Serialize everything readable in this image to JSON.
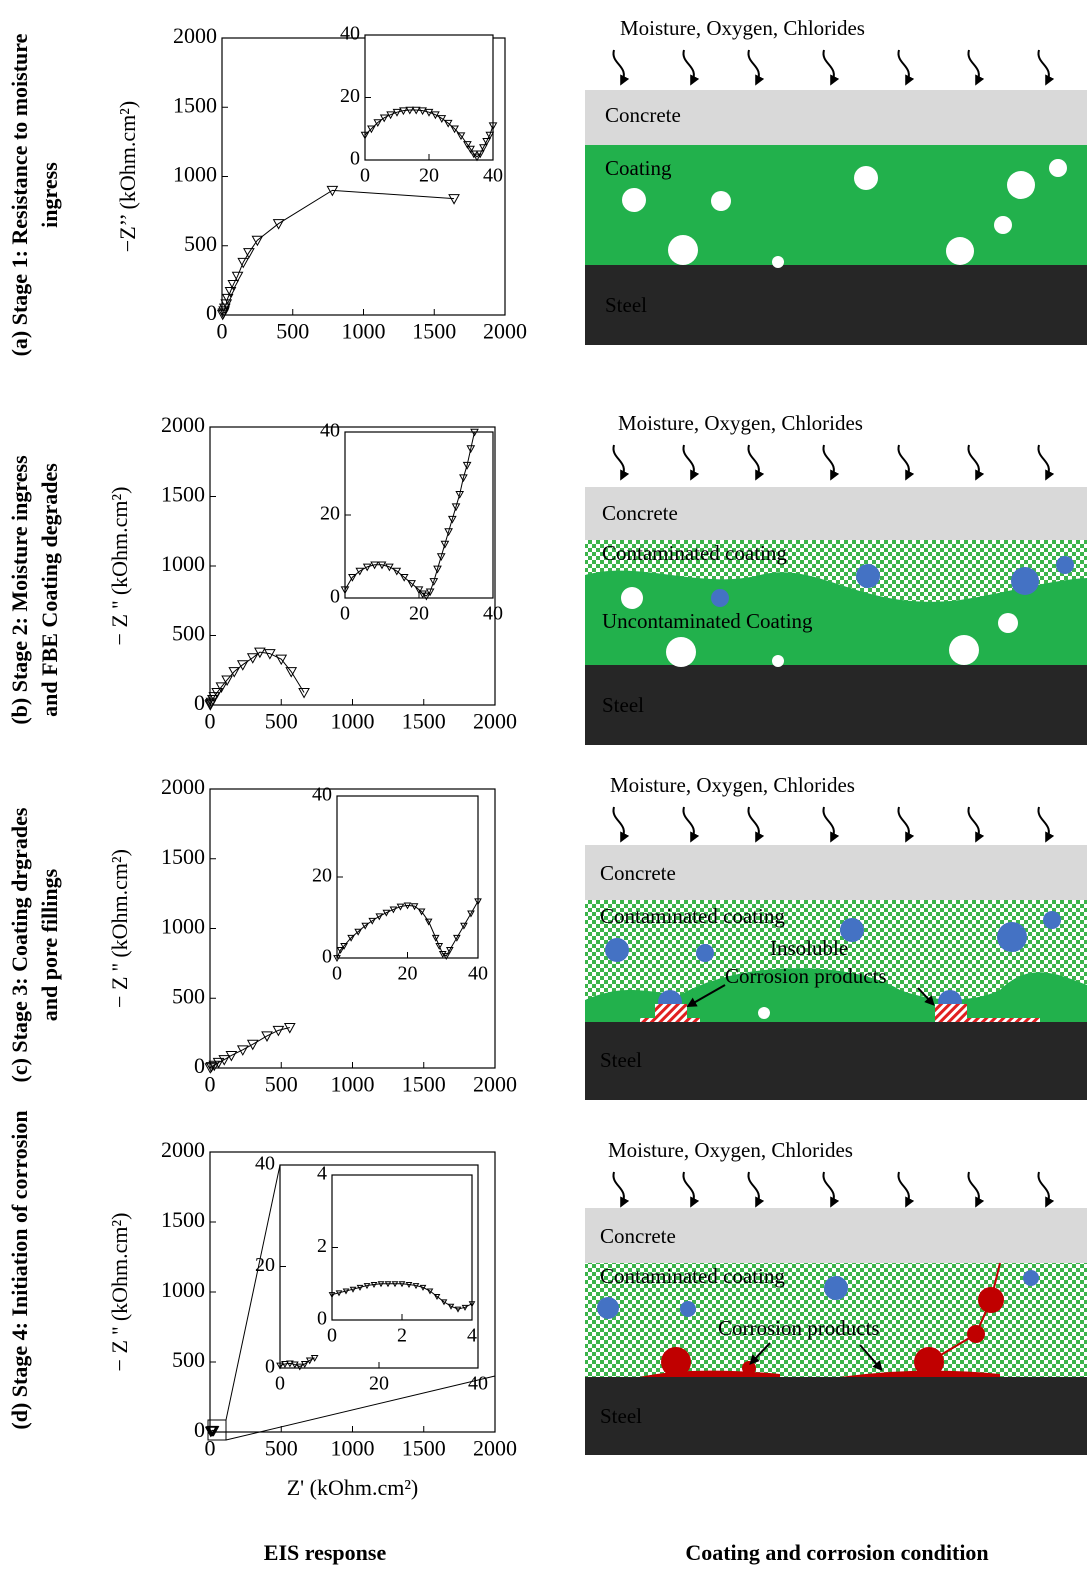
{
  "chart_data": [
    {
      "type": "scatter",
      "marker": "triangle-down",
      "fit_line": true,
      "color": "#000000",
      "y_label": "−Z’’ (kOhm.cm²)",
      "x": [
        5,
        10,
        15,
        20,
        30,
        40,
        60,
        80,
        110,
        150,
        190,
        250,
        400,
        780,
        1640
      ],
      "series": [
        {
          "values": [
            5,
            15,
            30,
            50,
            80,
            120,
            170,
            220,
            280,
            380,
            450,
            540,
            660,
            900,
            840
          ]
        }
      ],
      "xlim": [
        0,
        2000
      ],
      "ylim": [
        0,
        2000
      ],
      "xticks": [
        0,
        500,
        1000,
        1500,
        2000
      ],
      "yticks": [
        0,
        500,
        1000,
        1500,
        2000
      ]
    },
    {
      "type": "scatter",
      "marker": "triangle-down",
      "fit_line": true,
      "color": "#000000",
      "x": [
        0,
        2,
        4,
        6,
        8,
        10,
        12,
        14,
        16,
        18,
        20,
        22,
        24,
        26,
        28,
        30,
        32,
        33,
        34,
        35,
        36,
        37,
        38,
        39,
        40
      ],
      "series": [
        {
          "values": [
            8,
            10,
            12,
            13.5,
            14.5,
            15.3,
            15.8,
            16,
            16,
            15.8,
            15.3,
            14.5,
            13.3,
            11.8,
            10,
            7.8,
            5,
            3.5,
            2,
            1,
            2,
            4,
            6,
            8,
            11
          ]
        }
      ],
      "xlim": [
        0,
        40
      ],
      "ylim": [
        0,
        40
      ],
      "xticks": [
        0,
        20,
        40
      ],
      "yticks": [
        0,
        20,
        40
      ]
    },
    {
      "type": "scatter",
      "marker": "triangle-down",
      "fit_line": true,
      "color": "#000000",
      "y_label": "− Z '' (kOhm.cm²)",
      "x": [
        2,
        5,
        10,
        20,
        30,
        50,
        80,
        120,
        170,
        230,
        300,
        350,
        420,
        500,
        570,
        660
      ],
      "series": [
        {
          "values": [
            2,
            10,
            20,
            40,
            60,
            90,
            130,
            180,
            240,
            290,
            340,
            380,
            370,
            330,
            240,
            90
          ]
        }
      ],
      "xlim": [
        0,
        2000
      ],
      "ylim": [
        0,
        2000
      ],
      "xticks": [
        0,
        500,
        1000,
        1500,
        2000
      ],
      "yticks": [
        0,
        500,
        1000,
        1500,
        2000
      ]
    },
    {
      "type": "scatter",
      "marker": "triangle-down",
      "fit_line": true,
      "color": "#000000",
      "x": [
        0,
        2,
        4,
        6,
        8,
        10,
        12,
        14,
        16,
        18,
        20,
        21,
        22,
        23,
        24,
        25,
        26,
        27,
        28,
        29,
        30,
        31,
        32,
        33,
        34,
        35
      ],
      "series": [
        {
          "values": [
            2,
            5,
            6.5,
            7.5,
            8,
            8,
            7.5,
            6.5,
            5,
            3.5,
            2,
            1,
            0.5,
            1.5,
            4,
            7,
            10,
            13,
            16,
            19,
            22,
            25,
            29,
            32,
            36,
            40
          ]
        }
      ],
      "xlim": [
        0,
        40
      ],
      "ylim": [
        0,
        40
      ],
      "xticks": [
        0,
        20,
        40
      ],
      "yticks": [
        0,
        20,
        40
      ]
    },
    {
      "type": "scatter",
      "marker": "triangle-down",
      "fit_line": true,
      "color": "#000000",
      "y_label": "− Z '' (kOhm.cm²)",
      "x": [
        2,
        10,
        30,
        60,
        100,
        150,
        230,
        300,
        400,
        480,
        560
      ],
      "series": [
        {
          "values": [
            2,
            10,
            20,
            40,
            60,
            90,
            130,
            170,
            230,
            270,
            290
          ]
        }
      ],
      "xlim": [
        0,
        2000
      ],
      "ylim": [
        0,
        2000
      ],
      "xticks": [
        0,
        500,
        1000,
        1500,
        2000
      ],
      "yticks": [
        0,
        500,
        1000,
        1500,
        2000
      ]
    },
    {
      "type": "scatter",
      "marker": "triangle-down",
      "fit_line": true,
      "color": "#000000",
      "x": [
        0,
        1,
        2,
        4,
        6,
        8,
        10,
        12,
        14,
        16,
        18,
        20,
        22,
        24,
        26,
        28,
        29,
        30,
        31,
        32,
        34,
        36,
        38,
        40
      ],
      "series": [
        {
          "values": [
            0,
            2,
            3,
            5,
            6.5,
            8,
            9.2,
            10.3,
            11.2,
            12,
            12.7,
            13,
            12.8,
            11.5,
            9,
            5,
            3,
            1,
            0.5,
            2,
            5,
            8,
            11,
            14
          ]
        }
      ],
      "xlim": [
        0,
        40
      ],
      "ylim": [
        0,
        40
      ],
      "xticks": [
        0,
        20,
        40
      ],
      "yticks": [
        0,
        20,
        40
      ]
    },
    {
      "type": "scatter",
      "marker": "triangle-down",
      "fit_line": true,
      "color": "#000000",
      "y_label": "− Z '' (kOhm.cm²)",
      "x_label": "Z' (kOhm.cm²)",
      "x": [
        5,
        10,
        15,
        20,
        25
      ],
      "series": [
        {
          "values": [
            5,
            8,
            10,
            12,
            10
          ]
        }
      ],
      "xlim": [
        0,
        2000
      ],
      "ylim": [
        0,
        2000
      ],
      "xticks": [
        0,
        500,
        1000,
        1500,
        2000
      ],
      "yticks": [
        0,
        500,
        1000,
        1500,
        2000
      ]
    },
    {
      "type": "scatter",
      "marker": "triangle-down",
      "fit_line": true,
      "color": "#000000",
      "x": [
        0,
        1,
        2,
        3,
        4,
        5,
        6,
        7
      ],
      "series": [
        {
          "values": [
            0.5,
            0.8,
            0.9,
            0.7,
            0.3,
            0.8,
            1.5,
            2
          ]
        }
      ],
      "xlim": [
        0,
        40
      ],
      "ylim": [
        0,
        40
      ],
      "xticks": [
        0,
        20,
        40
      ],
      "yticks": [
        0,
        20,
        40
      ]
    },
    {
      "type": "scatter",
      "marker": "triangle-down",
      "fit_line": true,
      "color": "#000000",
      "x": [
        0,
        0.2,
        0.4,
        0.6,
        0.8,
        1,
        1.2,
        1.4,
        1.6,
        1.8,
        2,
        2.2,
        2.4,
        2.6,
        2.8,
        3,
        3.2,
        3.4,
        3.6,
        3.8,
        4
      ],
      "series": [
        {
          "values": [
            0.7,
            0.75,
            0.8,
            0.85,
            0.9,
            0.95,
            0.98,
            1,
            1,
            1,
            1,
            0.98,
            0.95,
            0.9,
            0.8,
            0.65,
            0.5,
            0.38,
            0.3,
            0.35,
            0.45
          ]
        }
      ],
      "xlim": [
        0,
        4
      ],
      "ylim": [
        0,
        4
      ],
      "xticks": [
        0,
        2,
        4
      ],
      "yticks": [
        0,
        2,
        4
      ]
    }
  ],
  "stages": [
    [
      "(a) Stage 1: Resistance to moisture",
      "ingress"
    ],
    [
      "(b) Stage 2: Moisture ingress",
      "and FBE Coating degrades"
    ],
    [
      "(c) Stage 3: Coating drgrades",
      "and pore fillings"
    ],
    [
      "(d) Stage 4: Initiation of corrosion"
    ]
  ],
  "columns": [
    "EIS response",
    "Coating and corrosion condition"
  ],
  "diagrams": [
    {
      "labels": [
        "Moisture, Oxygen, Chlorides",
        "Concrete",
        "Coating",
        "Steel"
      ]
    },
    {
      "labels": [
        "Moisture, Oxygen, Chlorides",
        "Concrete",
        "Contaminated coating",
        "Uncontaminated Coating",
        "Steel"
      ]
    },
    {
      "labels": [
        "Moisture, Oxygen, Chlorides",
        "Concrete",
        "Contaminated coating",
        "Insoluble",
        "Corrosion products",
        "Steel"
      ]
    },
    {
      "labels": [
        "Moisture, Oxygen, Chlorides",
        "Concrete",
        "Contaminated coating",
        "Corrosion products",
        "Steel"
      ]
    }
  ]
}
